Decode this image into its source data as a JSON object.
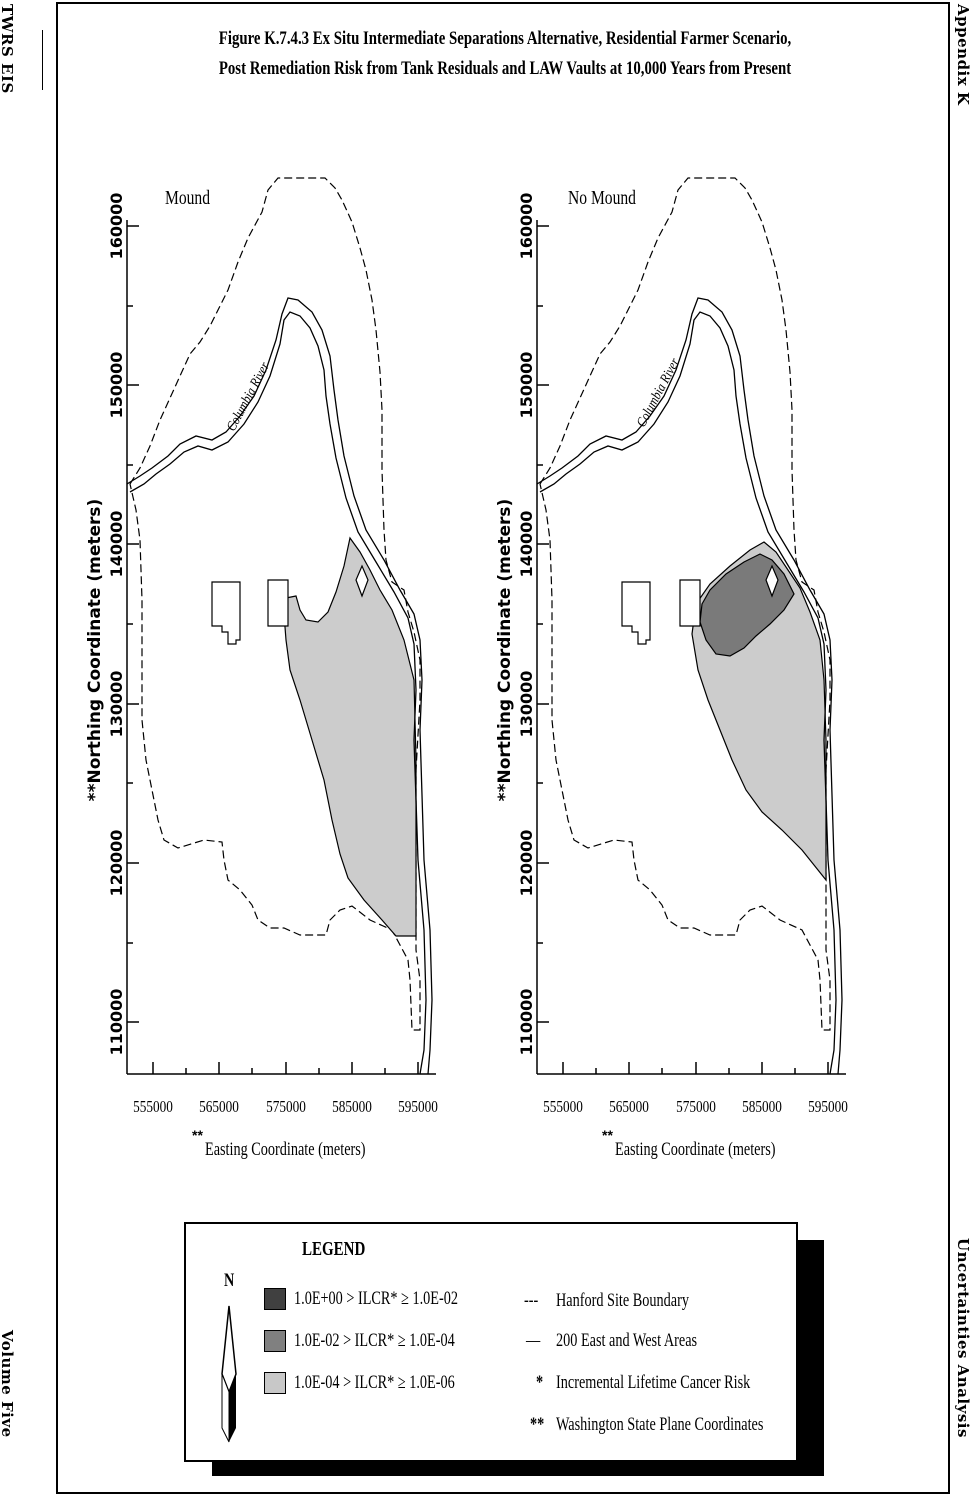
{
  "header": {
    "left_label": "TWRS EIS",
    "right_label": "Appendix K",
    "bottom_left_label": "Volume Five",
    "bottom_right_label": "Uncertainties Analysis"
  },
  "figure": {
    "title_line1": "Figure K.7.4.3  Ex Situ Intermediate Separations Alternative, Residential Farmer Scenario,",
    "title_line2": "Post Remediation Risk from Tank Residuals and LAW Vaults at 10,000 Years from Present"
  },
  "maps": [
    {
      "label": "Mound",
      "river_label": "Columbia River",
      "x_ticks": [
        "555000",
        "565000",
        "575000",
        "585000",
        "595000"
      ],
      "y_ticks": [
        "160000",
        "150000",
        "140000",
        "130000",
        "120000",
        "110000"
      ],
      "x_label_prefix": "**",
      "x_label": "Easting Coordinate (meters)",
      "y_label": "**Northing Coordinate (meters)"
    },
    {
      "label": "No Mound",
      "river_label": "Columbia River",
      "x_ticks": [
        "555000",
        "565000",
        "575000",
        "585000",
        "595000"
      ],
      "y_ticks": [
        "160000",
        "150000",
        "140000",
        "130000",
        "120000",
        "110000"
      ],
      "x_label_prefix": "**",
      "x_label": "Easting Coordinate (meters)",
      "y_label": "**Northing Coordinate (meters)"
    }
  ],
  "legend": {
    "title": "LEGEND",
    "north": "N",
    "items": [
      {
        "text": "1.0E+00 > ILCR* ≥ 1.0E-02",
        "color": "#404040"
      },
      {
        "text": "1.0E-02 > ILCR* ≥ 1.0E-04",
        "color": "#808080"
      },
      {
        "text": "1.0E-04 > ILCR* ≥ 1.0E-06",
        "color": "#c8c8c8"
      }
    ],
    "notes": [
      {
        "symbol": "---",
        "text": "Hanford Site Boundary"
      },
      {
        "symbol": "—",
        "text": "200 East and West Areas"
      },
      {
        "symbol": "*",
        "text": "Incremental Lifetime Cancer Risk"
      },
      {
        "symbol": "**",
        "text": "Washington State Plane Coordinates"
      }
    ]
  }
}
